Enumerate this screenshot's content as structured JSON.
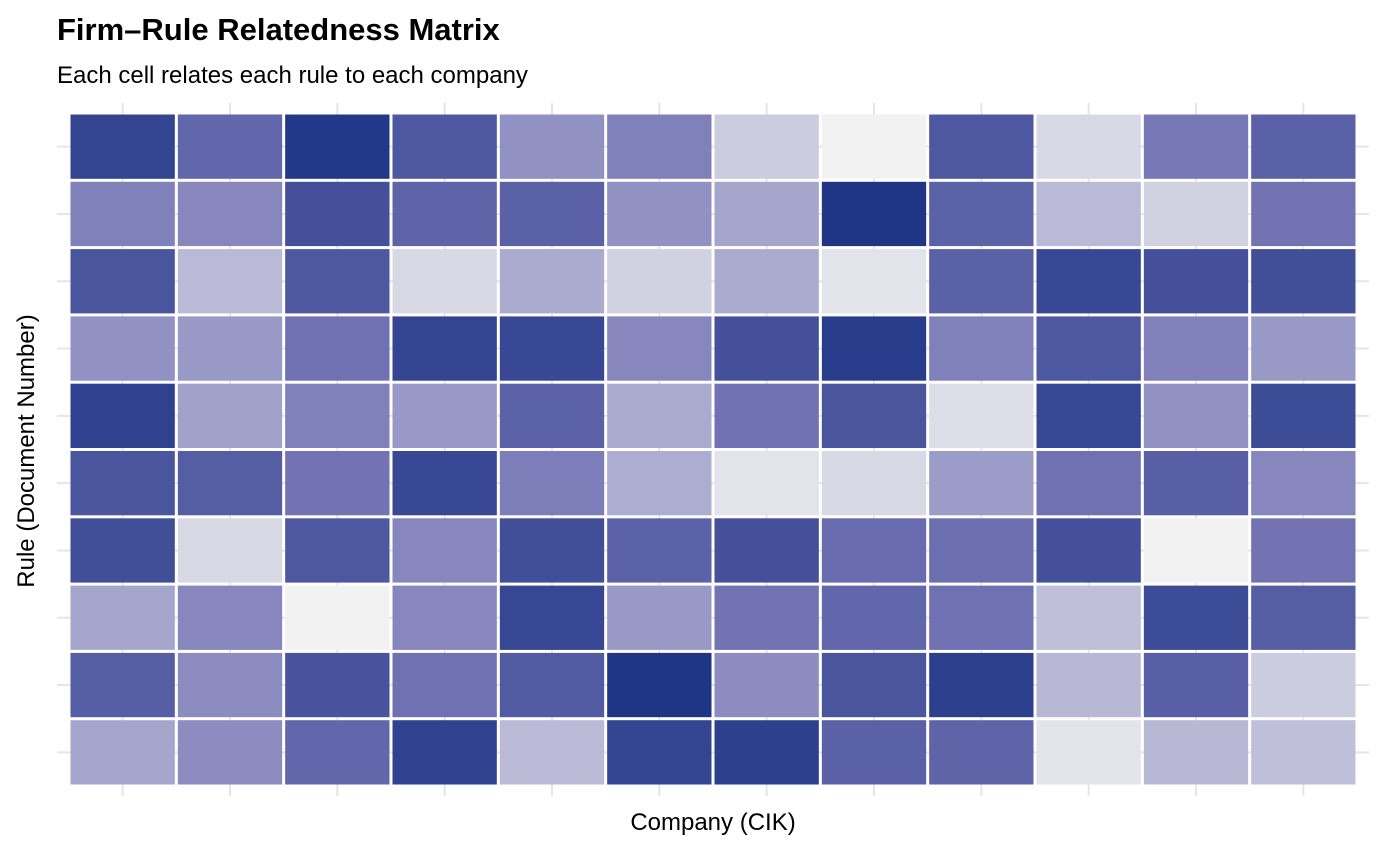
{
  "chart_data": {
    "type": "heatmap",
    "title": "Firm–Rule Relatedness Matrix",
    "subtitle": "Each cell relates each rule to each company",
    "xlabel": "Company (CIK)",
    "ylabel": "Rule (Document Number)",
    "columns": 12,
    "rows": 10,
    "x_tick_labels_visible": false,
    "y_tick_labels_visible": false,
    "value_range": [
      0,
      1
    ],
    "color_low": "#f2f2f2",
    "color_high": "#1f3686",
    "grid": true,
    "legend": "none",
    "values": [
      [
        0.88,
        0.6,
        0.98,
        0.72,
        0.38,
        0.45,
        0.15,
        0.0,
        0.72,
        0.1,
        0.48,
        0.65
      ],
      [
        0.45,
        0.42,
        0.78,
        0.62,
        0.65,
        0.38,
        0.3,
        1.0,
        0.64,
        0.22,
        0.13,
        0.5
      ],
      [
        0.75,
        0.22,
        0.72,
        0.1,
        0.28,
        0.13,
        0.28,
        0.06,
        0.65,
        0.85,
        0.78,
        0.8
      ],
      [
        0.38,
        0.35,
        0.52,
        0.88,
        0.85,
        0.42,
        0.78,
        0.95,
        0.45,
        0.72,
        0.45,
        0.35
      ],
      [
        0.9,
        0.32,
        0.45,
        0.35,
        0.64,
        0.28,
        0.52,
        0.75,
        0.08,
        0.86,
        0.38,
        0.82
      ],
      [
        0.75,
        0.68,
        0.5,
        0.85,
        0.46,
        0.27,
        0.06,
        0.1,
        0.34,
        0.52,
        0.66,
        0.42
      ],
      [
        0.8,
        0.1,
        0.72,
        0.42,
        0.8,
        0.64,
        0.78,
        0.56,
        0.54,
        0.78,
        0.0,
        0.5
      ],
      [
        0.3,
        0.42,
        0.0,
        0.42,
        0.86,
        0.35,
        0.5,
        0.6,
        0.52,
        0.2,
        0.82,
        0.68
      ],
      [
        0.68,
        0.4,
        0.76,
        0.52,
        0.7,
        1.0,
        0.4,
        0.75,
        0.92,
        0.23,
        0.66,
        0.15
      ],
      [
        0.3,
        0.4,
        0.6,
        0.9,
        0.22,
        0.88,
        0.92,
        0.65,
        0.62,
        0.06,
        0.23,
        0.2
      ]
    ]
  }
}
